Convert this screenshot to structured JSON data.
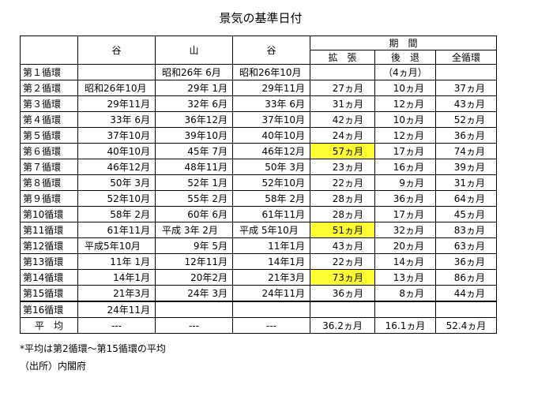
{
  "title": "景気の基準日付",
  "table": {
    "header": {
      "columns": [
        "谷",
        "山",
        "谷"
      ],
      "period": "期　間",
      "period_columns": [
        "拡　張",
        "後　退",
        "全循環"
      ]
    },
    "rows": [
      [
        "第１循環",
        null,
        "昭和26年 6月",
        "昭和26年10月",
        null,
        "（4ヵ月）",
        null
      ],
      [
        "第２循環",
        "昭和26年10月",
        "29年 1月",
        "29年11月",
        "27ヵ月",
        "10ヵ月",
        "37ヵ月"
      ],
      [
        "第３循環",
        "29年11月",
        "32年 6月",
        "33年 6月",
        "31ヵ月",
        "12ヵ月",
        "43ヵ月"
      ],
      [
        "第４循環",
        "33年 6月",
        "36年12月",
        "37年10月",
        "42ヵ月",
        "10ヵ月",
        "52ヵ月"
      ],
      [
        "第５循環",
        "37年10月",
        "39年10月",
        "40年10月",
        "24ヵ月",
        "12ヵ月",
        "36ヵ月"
      ],
      [
        "第６循環",
        "40年10月",
        "45年 7月",
        "46年12月",
        "57ヵ月",
        "17ヵ月",
        "74ヵ月"
      ],
      [
        "第７循環",
        "46年12月",
        "48年11月",
        "50年 3月",
        "23ヵ月",
        "16ヵ月",
        "39ヵ月"
      ],
      [
        "第８循環",
        "50年 3月",
        "52年 1月",
        "52年10月",
        "22ヵ月",
        "9ヵ月",
        "31ヵ月"
      ],
      [
        "第９循環",
        "52年10月",
        "55年 2月",
        "58年 2月",
        "28ヵ月",
        "36ヵ月",
        "64ヵ月"
      ],
      [
        "第10循環",
        "58年 2月",
        "60年 6月",
        "61年11月",
        "28ヵ月",
        "17ヵ月",
        "45ヵ月"
      ],
      [
        "第11循環",
        "61年11月",
        "平成 3年 2月",
        "平成 5年10月",
        "51ヵ月",
        "32ヵ月",
        "83ヵ月"
      ],
      [
        "第12循環",
        "平成5年10月",
        "9年 5月",
        "11年1月",
        "43ヵ月",
        "20ヵ月",
        "63ヵ月"
      ],
      [
        "第13循環",
        "11年 1月",
        "12年11月",
        "14年1月",
        "22ヵ月",
        "14ヵ月",
        "36ヵ月"
      ],
      [
        "第14循環",
        "14年1月",
        "20年2月",
        "21年3月",
        "73ヵ月",
        "13ヵ月",
        "86ヵ月"
      ],
      [
        "第15循環",
        "21年3月",
        "24年 3月",
        "24年11月",
        "36ヵ月",
        "8ヵ月",
        "44ヵ月"
      ],
      [
        "第16循環",
        "24年11月",
        null,
        null,
        null,
        null,
        null
      ],
      [
        "平　均",
        "---",
        "---",
        "---",
        "36.2ヵ月",
        "16.1ヵ月",
        "52.4ヵ月"
      ]
    ]
  },
  "notes": [
    "*平均は第2循環～第15循環の平均",
    "（出所）内閣府"
  ]
}
